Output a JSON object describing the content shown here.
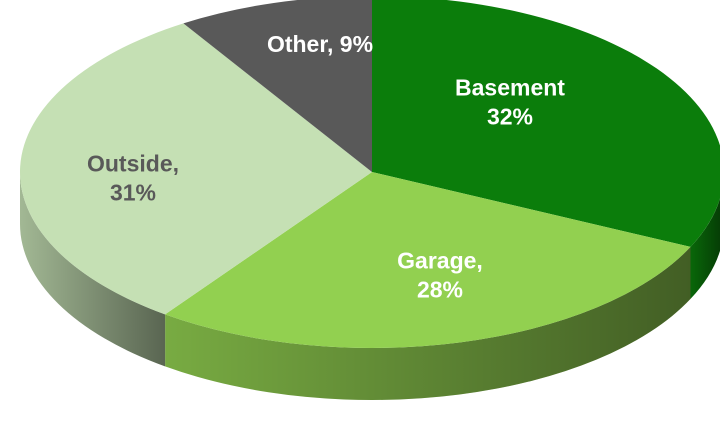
{
  "chart_data": {
    "type": "pie",
    "values": [
      32,
      28,
      31,
      9
    ],
    "value_labels": [
      [
        "Basement",
        "32%"
      ],
      [
        "Garage,",
        "28%"
      ],
      [
        "Outside,",
        "31%"
      ],
      [
        "Other, 9%"
      ]
    ],
    "colors": [
      "#0b7d0b",
      "#92d050",
      "#c5e0b4",
      "#595959"
    ]
  }
}
